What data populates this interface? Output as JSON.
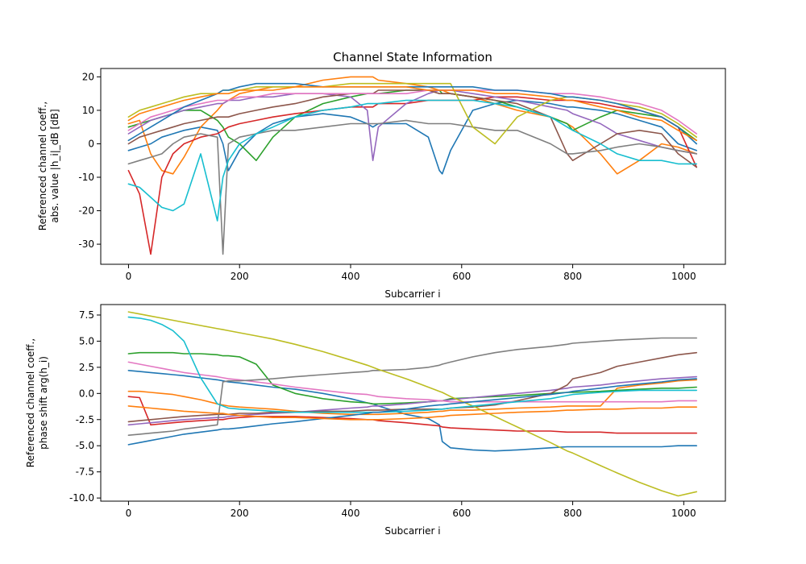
{
  "figure": {
    "title": "Channel State Information"
  },
  "colors": [
    "#1f77b4",
    "#ff7f0e",
    "#2ca02c",
    "#d62728",
    "#9467bd",
    "#8c564b",
    "#e377c2",
    "#7f7f7f",
    "#bcbd22",
    "#17becf"
  ],
  "chart_data": [
    {
      "type": "line",
      "title": "Channel State Information",
      "xlabel": "Subcarrier i",
      "ylabel": [
        "Referenced channel coeff.,",
        "abs. value |h_i|_dB [dB]"
      ],
      "xlim": [
        -50,
        1075
      ],
      "ylim": [
        -36,
        22.5
      ],
      "xticks": [
        0,
        200,
        400,
        600,
        800,
        1000
      ],
      "yticks": [
        20,
        10,
        0,
        -10,
        -20,
        -30
      ],
      "grid": false,
      "x": [
        0,
        20,
        40,
        60,
        80,
        100,
        130,
        160,
        170,
        180,
        200,
        230,
        260,
        300,
        350,
        400,
        430,
        440,
        450,
        500,
        540,
        560,
        565,
        580,
        620,
        660,
        700,
        760,
        790,
        800,
        850,
        880,
        920,
        960,
        990,
        1023
      ],
      "series": [
        {
          "values": [
            -2,
            -1,
            0,
            2,
            3,
            4,
            5,
            4,
            0,
            -8,
            -2,
            3,
            6,
            8,
            9,
            8,
            6,
            5,
            6,
            6,
            2,
            -8,
            -9,
            -2,
            10,
            12,
            13,
            12,
            11,
            11,
            10,
            9,
            7,
            5,
            0,
            -2
          ]
        },
        {
          "values": [
            6,
            7,
            -3,
            -8,
            -9,
            -4,
            5,
            10,
            12,
            13,
            15,
            16,
            17,
            17,
            19,
            20,
            20,
            20,
            19,
            18,
            17,
            16,
            16,
            15,
            14,
            12,
            10,
            8,
            6,
            5,
            -3,
            -9,
            -5,
            0,
            -1,
            -3
          ]
        },
        {
          "values": [
            5,
            6,
            7,
            8,
            9,
            10,
            10,
            7,
            5,
            2,
            0,
            -5,
            2,
            8,
            12,
            14,
            15,
            15,
            15,
            16,
            16,
            16,
            15,
            15,
            14,
            13,
            11,
            8,
            6,
            4,
            8,
            10,
            9,
            8,
            5,
            1
          ]
        },
        {
          "values": [
            -8,
            -15,
            -33,
            -10,
            -3,
            0,
            2,
            3,
            4,
            5,
            6,
            7,
            8,
            9,
            10,
            11,
            11,
            11,
            12,
            12,
            13,
            13,
            13,
            13,
            13,
            14,
            14,
            13,
            13,
            13,
            12,
            11,
            10,
            8,
            5,
            -7
          ]
        },
        {
          "values": [
            3,
            5,
            7,
            8,
            9,
            10,
            11,
            12,
            12,
            13,
            13,
            14,
            14,
            15,
            15,
            14,
            10,
            -5,
            5,
            12,
            15,
            16,
            16,
            16,
            15,
            14,
            13,
            11,
            10,
            9,
            6,
            3,
            1,
            -1,
            -2,
            -3
          ]
        },
        {
          "values": [
            0,
            2,
            3,
            4,
            5,
            6,
            7,
            8,
            8,
            8,
            9,
            10,
            11,
            12,
            14,
            15,
            15,
            15,
            16,
            16,
            16,
            15,
            15,
            15,
            14,
            13,
            12,
            8,
            -3,
            -5,
            0,
            3,
            4,
            3,
            -3,
            -7
          ]
        },
        {
          "values": [
            4,
            6,
            8,
            9,
            10,
            11,
            12,
            13,
            13,
            13,
            14,
            14,
            15,
            15,
            15,
            15,
            15,
            15,
            15,
            15,
            16,
            16,
            16,
            16,
            16,
            16,
            16,
            15,
            15,
            15,
            14,
            13,
            12,
            10,
            7,
            3
          ]
        },
        {
          "values": [
            -6,
            -5,
            -4,
            -3,
            0,
            2,
            3,
            2,
            -33,
            0,
            2,
            3,
            4,
            4,
            5,
            6,
            6,
            6,
            6,
            7,
            6,
            6,
            6,
            6,
            5,
            4,
            4,
            0,
            -3,
            -3,
            -2,
            -1,
            0,
            -1,
            -2,
            -3
          ]
        },
        {
          "values": [
            8,
            10,
            11,
            12,
            13,
            14,
            15,
            15,
            16,
            16,
            16,
            17,
            17,
            17,
            17,
            18,
            18,
            18,
            18,
            18,
            18,
            18,
            18,
            18,
            5,
            0,
            8,
            13,
            14,
            14,
            13,
            12,
            11,
            9,
            6,
            2
          ]
        },
        {
          "values": [
            -12,
            -13,
            -16,
            -19,
            -20,
            -18,
            -3,
            -23,
            -10,
            -5,
            0,
            3,
            5,
            8,
            10,
            11,
            12,
            12,
            12,
            13,
            13,
            13,
            13,
            13,
            13,
            12,
            11,
            8,
            5,
            4,
            0,
            -3,
            -5,
            -5,
            -6,
            -6
          ]
        },
        {
          "values": [
            1,
            3,
            5,
            7,
            9,
            11,
            13,
            15,
            16,
            16,
            17,
            18,
            18,
            18,
            17,
            17,
            17,
            17,
            17,
            17,
            17,
            17,
            17,
            17,
            17,
            16,
            16,
            15,
            14,
            14,
            13,
            12,
            10,
            8,
            5,
            0
          ]
        },
        {
          "values": [
            7,
            9,
            10,
            11,
            12,
            13,
            14,
            15,
            15,
            15,
            16,
            16,
            16,
            17,
            17,
            17,
            17,
            17,
            17,
            17,
            16,
            16,
            16,
            16,
            16,
            15,
            15,
            14,
            13,
            13,
            11,
            10,
            8,
            7,
            4,
            1
          ]
        }
      ]
    },
    {
      "type": "line",
      "title": "",
      "xlabel": "Subcarrier i",
      "ylabel": [
        "Referenced channel coeff.,",
        "phase shift arg(h_i)"
      ],
      "xlim": [
        -50,
        1075
      ],
      "ylim": [
        -10.3,
        8.5
      ],
      "xticks": [
        0,
        200,
        400,
        600,
        800,
        1000
      ],
      "yticks": [
        7.5,
        5.0,
        2.5,
        0.0,
        -2.5,
        -5.0,
        -7.5,
        -10.0
      ],
      "grid": false,
      "x": [
        0,
        20,
        40,
        60,
        80,
        100,
        130,
        160,
        170,
        180,
        200,
        230,
        260,
        300,
        350,
        400,
        430,
        440,
        450,
        500,
        540,
        560,
        565,
        580,
        620,
        660,
        700,
        760,
        790,
        800,
        850,
        880,
        920,
        960,
        990,
        1023
      ],
      "series": [
        {
          "values": [
            2.2,
            2.1,
            2.0,
            1.9,
            1.8,
            1.7,
            1.5,
            1.3,
            1.2,
            1.1,
            1.0,
            0.8,
            0.6,
            0.4,
            0.0,
            -0.5,
            -0.9,
            -1.0,
            -1.2,
            -2.0,
            -2.4,
            -3.0,
            -4.6,
            -5.2,
            -5.4,
            -5.5,
            -5.4,
            -5.2,
            -5.1,
            -5.1,
            -5.1,
            -5.1,
            -5.1,
            -5.1,
            -5.0,
            -5.0
          ]
        },
        {
          "values": [
            0.2,
            0.2,
            0.1,
            0.0,
            -0.1,
            -0.3,
            -0.6,
            -1.0,
            -1.1,
            -1.2,
            -1.3,
            -1.4,
            -1.5,
            -1.7,
            -1.9,
            -2.0,
            -2.0,
            -2.0,
            -2.0,
            -1.9,
            -1.8,
            -1.7,
            -1.7,
            -1.6,
            -1.6,
            -1.5,
            -1.4,
            -1.3,
            -1.2,
            -1.2,
            -1.2,
            0.5,
            0.8,
            1.0,
            1.2,
            1.3
          ]
        },
        {
          "values": [
            3.8,
            3.9,
            3.9,
            3.9,
            3.9,
            3.8,
            3.8,
            3.7,
            3.6,
            3.6,
            3.5,
            2.8,
            0.8,
            0.0,
            -0.5,
            -0.8,
            -0.9,
            -1.0,
            -1.0,
            -0.9,
            -0.8,
            -0.7,
            -0.7,
            -0.5,
            -0.4,
            -0.3,
            -0.2,
            0.0,
            0.1,
            0.1,
            0.2,
            0.3,
            0.4,
            0.5,
            0.5,
            0.6
          ]
        },
        {
          "values": [
            -0.3,
            -0.4,
            -3.0,
            -2.9,
            -2.8,
            -2.7,
            -2.6,
            -2.5,
            -2.5,
            -2.4,
            -2.3,
            -2.2,
            -2.2,
            -2.2,
            -2.3,
            -2.4,
            -2.5,
            -2.5,
            -2.6,
            -2.8,
            -3.0,
            -3.1,
            -3.2,
            -3.3,
            -3.4,
            -3.5,
            -3.6,
            -3.6,
            -3.7,
            -3.7,
            -3.7,
            -3.8,
            -3.8,
            -3.8,
            -3.8,
            -3.8
          ]
        },
        {
          "values": [
            -3.0,
            -2.9,
            -2.8,
            -2.7,
            -2.6,
            -2.5,
            -2.4,
            -2.3,
            -2.3,
            -2.2,
            -2.1,
            -2.0,
            -1.9,
            -1.8,
            -1.6,
            -1.4,
            -1.3,
            -1.2,
            -1.2,
            -1.0,
            -0.8,
            -0.7,
            -0.7,
            -0.6,
            -0.4,
            -0.2,
            0.0,
            0.3,
            0.5,
            0.6,
            0.8,
            1.0,
            1.2,
            1.4,
            1.5,
            1.6
          ]
        },
        {
          "values": [
            -2.7,
            -2.6,
            -2.5,
            -2.4,
            -2.3,
            -2.2,
            -2.1,
            -2.0,
            -2.0,
            -2.0,
            -1.9,
            -1.9,
            -1.8,
            -1.8,
            -1.7,
            -1.7,
            -1.6,
            -1.6,
            -1.6,
            -1.5,
            -1.5,
            -1.5,
            -1.5,
            -1.4,
            -1.3,
            -1.1,
            -0.7,
            0.0,
            0.8,
            1.4,
            2.0,
            2.6,
            3.0,
            3.4,
            3.7,
            3.9
          ]
        },
        {
          "values": [
            3.0,
            2.8,
            2.6,
            2.4,
            2.2,
            2.0,
            1.8,
            1.6,
            1.5,
            1.4,
            1.3,
            1.1,
            0.9,
            0.6,
            0.3,
            0.0,
            -0.1,
            -0.2,
            -0.3,
            -0.5,
            -0.6,
            -0.7,
            -0.7,
            -0.8,
            -0.8,
            -0.8,
            -0.8,
            -0.8,
            -0.8,
            -0.8,
            -0.8,
            -0.8,
            -0.8,
            -0.8,
            -0.7,
            -0.7
          ]
        },
        {
          "values": [
            -4.0,
            -3.9,
            -3.8,
            -3.7,
            -3.6,
            -3.4,
            -3.2,
            -3.0,
            1.1,
            1.2,
            1.2,
            1.3,
            1.4,
            1.6,
            1.8,
            2.0,
            2.1,
            2.2,
            2.2,
            2.3,
            2.5,
            2.7,
            2.8,
            3.0,
            3.5,
            3.9,
            4.2,
            4.5,
            4.7,
            4.8,
            5.0,
            5.1,
            5.2,
            5.3,
            5.3,
            5.3
          ]
        },
        {
          "values": [
            7.8,
            7.6,
            7.4,
            7.2,
            7.0,
            6.8,
            6.5,
            6.2,
            6.1,
            6.0,
            5.8,
            5.5,
            5.2,
            4.7,
            4.0,
            3.2,
            2.7,
            2.5,
            2.3,
            1.4,
            0.6,
            0.2,
            0.1,
            -0.3,
            -1.2,
            -2.2,
            -3.2,
            -4.7,
            -5.5,
            -5.7,
            -6.9,
            -7.6,
            -8.5,
            -9.3,
            -9.8,
            -9.4
          ]
        },
        {
          "values": [
            7.3,
            7.2,
            7.0,
            6.6,
            6.0,
            5.0,
            1.5,
            -1.0,
            -1.2,
            -1.4,
            -1.5,
            -1.6,
            -1.7,
            -1.8,
            -1.8,
            -1.8,
            -1.8,
            -1.8,
            -1.8,
            -1.7,
            -1.6,
            -1.5,
            -1.5,
            -1.4,
            -1.2,
            -1.0,
            -0.8,
            -0.5,
            -0.2,
            -0.1,
            0.1,
            0.2,
            0.3,
            0.3,
            0.3,
            0.3
          ]
        },
        {
          "values": [
            -4.9,
            -4.7,
            -4.5,
            -4.3,
            -4.1,
            -3.9,
            -3.7,
            -3.5,
            -3.4,
            -3.4,
            -3.3,
            -3.1,
            -2.9,
            -2.7,
            -2.4,
            -2.1,
            -1.9,
            -1.8,
            -1.8,
            -1.5,
            -1.2,
            -1.1,
            -1.1,
            -1.0,
            -0.8,
            -0.6,
            -0.4,
            -0.1,
            0.1,
            0.2,
            0.5,
            0.7,
            0.9,
            1.1,
            1.3,
            1.4
          ]
        },
        {
          "values": [
            -1.2,
            -1.3,
            -1.4,
            -1.5,
            -1.6,
            -1.7,
            -1.8,
            -1.9,
            -1.9,
            -2.0,
            -2.1,
            -2.2,
            -2.3,
            -2.3,
            -2.4,
            -2.5,
            -2.5,
            -2.5,
            -2.5,
            -2.4,
            -2.3,
            -2.2,
            -2.2,
            -2.1,
            -2.0,
            -1.9,
            -1.8,
            -1.7,
            -1.6,
            -1.6,
            -1.5,
            -1.5,
            -1.4,
            -1.4,
            -1.3,
            -1.3
          ]
        }
      ]
    }
  ]
}
